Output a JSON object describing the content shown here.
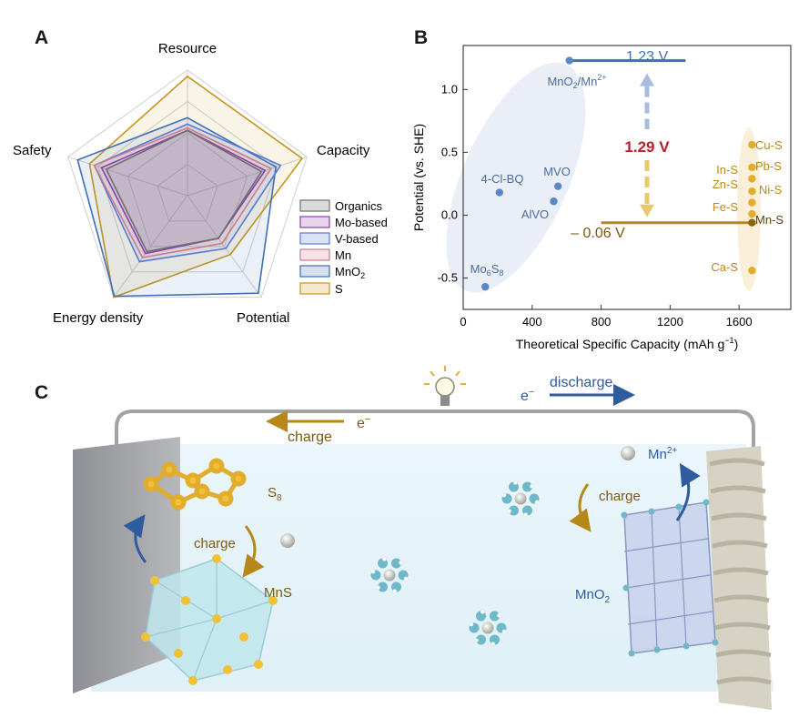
{
  "panels": {
    "a": "A",
    "b": "B",
    "c": "C"
  },
  "colors": {
    "organics": "#6e6e6e",
    "mo": "#8a3fa8",
    "v": "#5a78d6",
    "mn": "#d07a8a",
    "mno2": "#3f6fb5",
    "s": "#c8951a",
    "blue_marker": "#5b87c4",
    "gold_marker": "#e2ac2d",
    "red_label": "#b8202a",
    "rail": "#a3a3a3"
  },
  "chart_data": [
    {
      "type": "radar",
      "axes": [
        "Resource",
        "Capacity",
        "Potential",
        "Energy density",
        "Safety"
      ],
      "series": [
        {
          "name": "Organics",
          "color": "#6e6e6e",
          "values": [
            0.52,
            0.62,
            0.42,
            0.55,
            0.68
          ]
        },
        {
          "name": "Mo-based",
          "color": "#8a3fa8",
          "values": [
            0.52,
            0.65,
            0.42,
            0.57,
            0.72
          ]
        },
        {
          "name": "V-based",
          "color": "#5a78d6",
          "values": [
            0.57,
            0.78,
            0.52,
            0.65,
            0.78
          ]
        },
        {
          "name": "Mn",
          "color": "#d07a8a",
          "values": [
            0.54,
            0.7,
            0.47,
            0.61,
            0.78
          ]
        },
        {
          "name": "MnO2",
          "color": "#3f6fb5",
          "values": [
            0.62,
            0.74,
            0.96,
            0.99,
            0.92
          ]
        },
        {
          "name": "S",
          "color": "#c8951a",
          "values": [
            0.95,
            0.96,
            0.58,
            1.0,
            0.82
          ]
        }
      ],
      "legend_labels": [
        "Organics",
        "Mo-based",
        "V-based",
        "Mn",
        "MnO",
        "S"
      ],
      "legend_subscript_mno2": "2"
    },
    {
      "type": "scatter",
      "xlabel": "Theoretical Specific Capacity (mAh g",
      "xlabel_sup": "−1",
      "xlabel_end": ")",
      "ylabel": "Potential (vs. SHE)",
      "xlim": [
        0,
        1900
      ],
      "ylim": [
        -0.75,
        1.35
      ],
      "xticks": [
        0,
        400,
        800,
        1200,
        1600
      ],
      "yticks": [
        -0.5,
        0.0,
        0.5,
        1.0
      ],
      "ytick_labels": [
        "-0.5",
        "0.0",
        "0.5",
        "1.0"
      ],
      "points": [
        {
          "label": "MnO2/Mn2+",
          "x": 616,
          "y": 1.23,
          "group": "blue"
        },
        {
          "label": "MVO",
          "x": 550,
          "y": 0.23,
          "group": "blue"
        },
        {
          "label": "AlVO",
          "x": 525,
          "y": 0.11,
          "group": "blue"
        },
        {
          "label": "4-Cl-BQ",
          "x": 210,
          "y": 0.18,
          "group": "blue"
        },
        {
          "label": "Mo6S8",
          "x": 128,
          "y": -0.57,
          "group": "blue"
        },
        {
          "label": "Cu-S",
          "x": 1675,
          "y": 0.56,
          "group": "gold"
        },
        {
          "label": "Pb-S",
          "x": 1675,
          "y": 0.38,
          "group": "gold"
        },
        {
          "label": "In-S",
          "x": 1675,
          "y": 0.29,
          "group": "gold"
        },
        {
          "label": "Zn-S",
          "x": 1675,
          "y": 0.19,
          "group": "gold"
        },
        {
          "label": "Ni-S",
          "x": 1675,
          "y": 0.1,
          "group": "gold"
        },
        {
          "label": "Fe-S",
          "x": 1675,
          "y": 0.01,
          "group": "gold"
        },
        {
          "label": "Mn-S",
          "x": 1675,
          "y": -0.06,
          "group": "gold"
        },
        {
          "label": "Ca-S",
          "x": 1675,
          "y": -0.44,
          "group": "gold"
        }
      ],
      "label_text": {
        "mno2": "MnO",
        "mno2_sub": "2",
        "mno2_sep": "/Mn",
        "mno2_sup": "2+",
        "mvo": "MVO",
        "alvo": "AlVO",
        "clbq": "4-Cl-BQ",
        "mo": "Mo",
        "mo_sub1": "6",
        "mo_s": "S",
        "mo_sub2": "8",
        "cus": "Cu-S",
        "pbs": "Pb-S",
        "ins": "In-S",
        "zns": "Zn-S",
        "nis": "Ni-S",
        "fes": "Fe-S",
        "mns": "Mn-S",
        "cas": "Ca-S"
      },
      "annotations": {
        "upper_level": "1.23 V",
        "lower_level": "– 0.06 V",
        "gap": "1.29 V",
        "upper_line": {
          "x_start": 616,
          "x_end": 1290,
          "y": 1.23
        },
        "lower_line": {
          "x_start": 800,
          "x_end": 1675,
          "y": -0.06
        }
      }
    }
  ],
  "schematic": {
    "discharge_label": "discharge",
    "electron_discharge": "e",
    "electron_discharge_sup": "−",
    "charge_top_label": "charge",
    "electron_charge": "e",
    "electron_charge_sup": "−",
    "s8": "S",
    "s8_sub": "8",
    "charge_left": "charge",
    "mns": "MnS",
    "mn2": "Mn",
    "mn2_sup": "2+",
    "charge_right": "charge",
    "mno2": "MnO",
    "mno2_sub": "2"
  }
}
